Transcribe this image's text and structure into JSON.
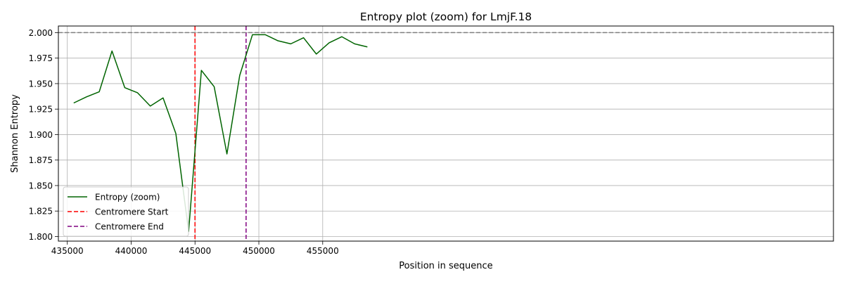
{
  "chart_data": {
    "type": "line",
    "title": "Entropy plot (zoom) for LmjF.18",
    "xlabel": "Position in sequence",
    "ylabel": "Shannon Entropy",
    "xlim": [
      434300,
      495000
    ],
    "ylim": [
      1.7955,
      2.0065
    ],
    "xticks": [
      435000,
      440000,
      445000,
      450000,
      455000
    ],
    "xtick_labels": [
      "435000",
      "440000",
      "445000",
      "450000",
      "455000"
    ],
    "yticks": [
      1.8,
      1.825,
      1.85,
      1.875,
      1.9,
      1.925,
      1.95,
      1.975,
      2.0
    ],
    "ytick_labels": [
      "1.800",
      "1.825",
      "1.850",
      "1.875",
      "1.900",
      "1.925",
      "1.950",
      "1.975",
      "2.000"
    ],
    "grid": true,
    "legend_position": "lower-left",
    "series": [
      {
        "name": "Entropy (zoom)",
        "color": "#006400",
        "x": [
          435500,
          436500,
          437500,
          438500,
          439500,
          440500,
          441500,
          442500,
          443500,
          444500,
          445500,
          446500,
          447500,
          448500,
          449500,
          450500,
          451500,
          452500,
          453500,
          454500,
          455500,
          456500,
          457500,
          458500
        ],
        "y": [
          1.931,
          1.937,
          1.942,
          1.982,
          1.946,
          1.941,
          1.928,
          1.936,
          1.901,
          1.805,
          1.963,
          1.947,
          1.881,
          1.958,
          1.998,
          1.998,
          1.992,
          1.989,
          1.995,
          1.979,
          1.99,
          1.996,
          1.989,
          1.986
        ]
      }
    ],
    "reference_lines": [
      {
        "name": "Centromere Start",
        "orientation": "vertical",
        "value": 445000,
        "color": "#ff0000",
        "style": "dashed"
      },
      {
        "name": "Centromere End",
        "orientation": "vertical",
        "value": 449000,
        "color": "#800080",
        "style": "dashed"
      },
      {
        "name": "",
        "orientation": "horizontal",
        "value": 2.0,
        "color": "#808080",
        "style": "dashed"
      }
    ]
  }
}
